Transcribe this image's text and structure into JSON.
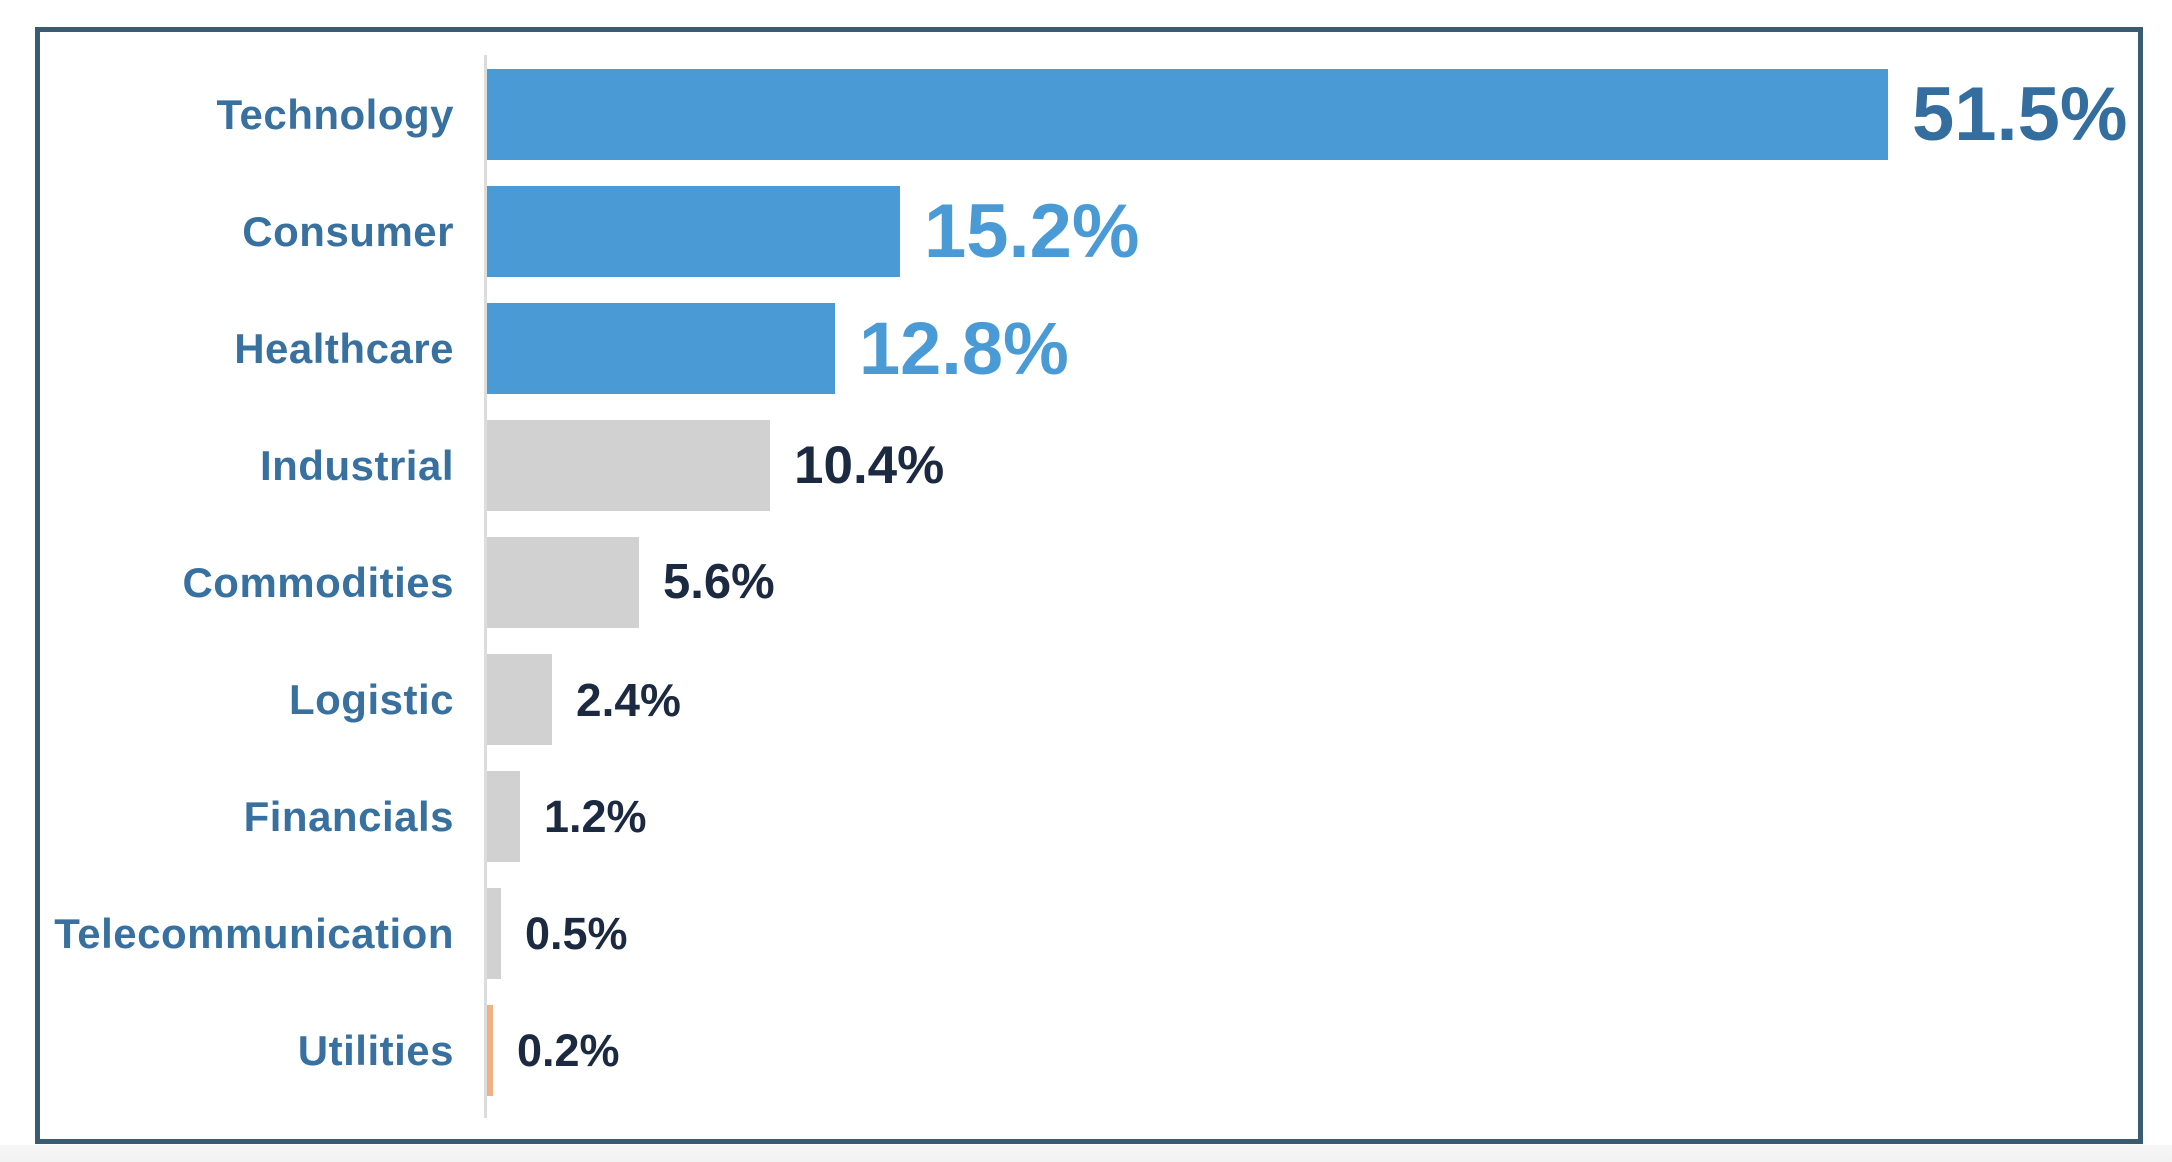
{
  "chart_data": {
    "type": "bar",
    "orientation": "horizontal",
    "title": "",
    "categories": [
      "Technology",
      "Consumer",
      "Healthcare",
      "Industrial",
      "Commodities",
      "Logistic",
      "Financials",
      "Telecommunication",
      "Utilities"
    ],
    "values": [
      51.5,
      15.2,
      12.8,
      10.4,
      5.6,
      2.4,
      1.2,
      0.5,
      0.2
    ],
    "value_labels": [
      "51.5%",
      "15.2%",
      "12.8%",
      "10.4%",
      "5.6%",
      "2.4%",
      "1.2%",
      "0.5%",
      "0.2%"
    ],
    "xlim": [
      0,
      60
    ],
    "grid": false,
    "legend": false,
    "bar_colors": [
      "#4A9BD5",
      "#4A9BD5",
      "#4A9BD5",
      "#D1D1D1",
      "#D1D1D1",
      "#D1D1D1",
      "#D1D1D1",
      "#D1D1D1",
      "#EEB183"
    ],
    "value_label_colors": [
      "#346E9E",
      "#4A9BD5",
      "#4A9BD5",
      "#1B2941",
      "#1B2941",
      "#1B2941",
      "#1B2941",
      "#1B2941",
      "#1B2941"
    ],
    "category_label_color": "#38719F",
    "axis_line_color": "#DCDCDC",
    "frame_border_color": "#3A5C73",
    "chart_background": "#FFFFFF",
    "footer_strip_color": "#F2F2F2"
  }
}
